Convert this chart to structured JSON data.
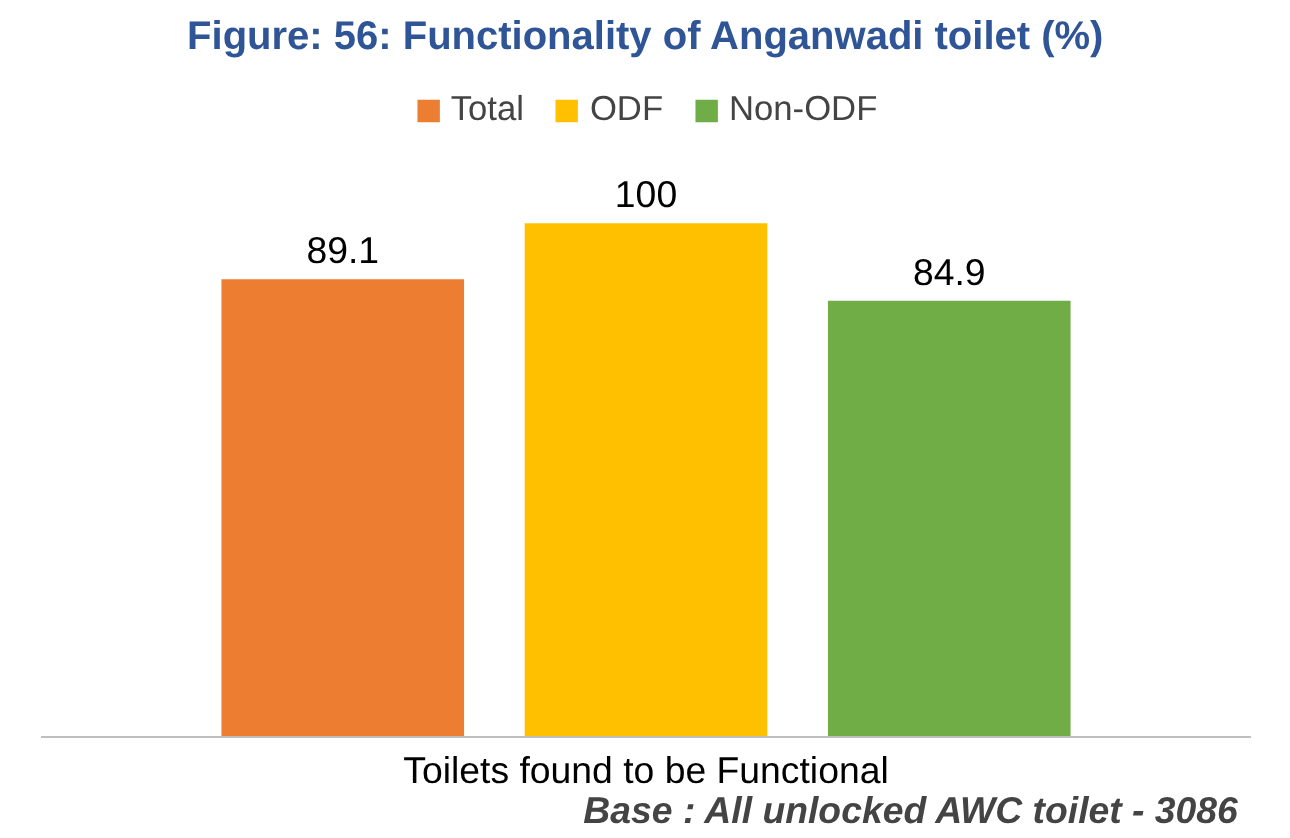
{
  "chart_data": {
    "type": "bar",
    "title": "Figure: 56: Functionality of Anganwadi toilet (%)",
    "xlabel": "Toilets found to be Functional",
    "categories": [
      null,
      null,
      null
    ],
    "series": [
      {
        "name": "Total",
        "color": "#ed7d31",
        "values": [
          89.1,
          null,
          null
        ]
      },
      {
        "name": "ODF",
        "color": "#ffc000",
        "values": [
          null,
          100,
          null
        ]
      },
      {
        "name": "Non-ODF",
        "color": "#70ad47",
        "values": [
          null,
          null,
          84.9
        ]
      }
    ],
    "stacked": true,
    "data_labels": true,
    "legend": "top",
    "tick_labels": false,
    "annotations": [
      "Base : All unlocked AWC toilet  - 3086"
    ]
  }
}
